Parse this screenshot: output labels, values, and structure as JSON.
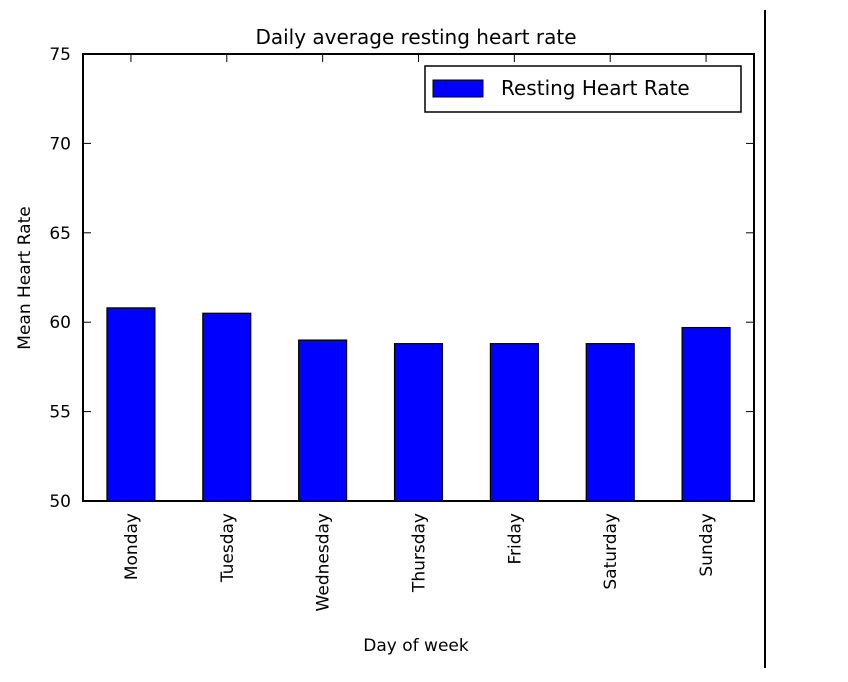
{
  "chart_data": {
    "type": "bar",
    "title": "Daily average resting heart rate",
    "xlabel": "Day of week",
    "ylabel": "Mean Heart Rate",
    "categories": [
      "Monday",
      "Tuesday",
      "Wednesday",
      "Thursday",
      "Friday",
      "Saturday",
      "Sunday"
    ],
    "series": [
      {
        "name": "Resting Heart Rate",
        "values": [
          60.8,
          60.5,
          59.0,
          58.8,
          58.8,
          58.8,
          59.7
        ],
        "color": "#0000ff"
      }
    ],
    "ylim": [
      50,
      75
    ],
    "yticks": [
      50,
      55,
      60,
      65,
      70,
      75
    ],
    "grid": false,
    "legend_position": "top-right"
  }
}
